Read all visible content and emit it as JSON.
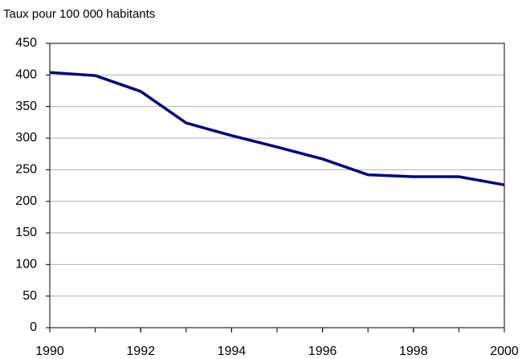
{
  "chart_data": {
    "type": "line",
    "y_label": "Taux pour 100 000 habitants",
    "x": [
      1990,
      1991,
      1992,
      1993,
      1994,
      1995,
      1996,
      1997,
      1998,
      1999,
      2000
    ],
    "series": [
      {
        "name": null,
        "color": "#000080",
        "values": [
          404,
          399,
          374,
          324,
          304,
          286,
          267,
          242,
          239,
          239,
          226
        ]
      }
    ],
    "xlim": [
      1990,
      2000
    ],
    "xticks": [
      1990,
      1992,
      1994,
      1996,
      1998,
      2000
    ],
    "ylim": [
      0,
      450
    ],
    "yticks": [
      0,
      50,
      100,
      150,
      200,
      250,
      300,
      350,
      400,
      450
    ],
    "grid": true
  }
}
